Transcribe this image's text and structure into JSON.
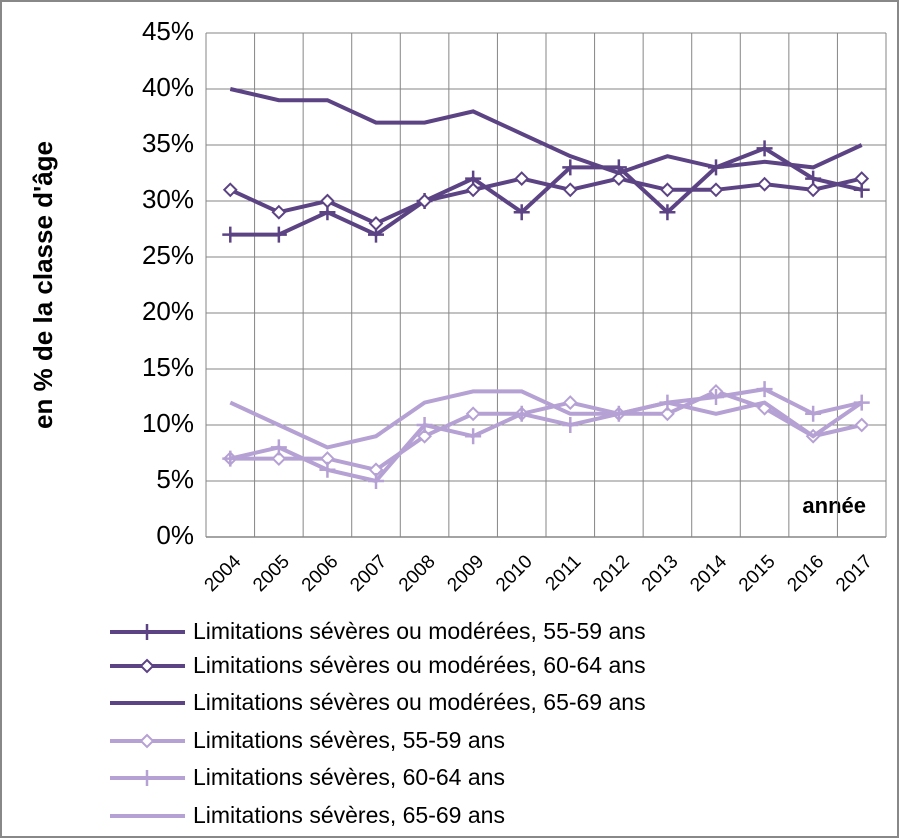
{
  "chart_data": {
    "type": "line",
    "y_label": "en % de la classe d'âge",
    "x_label": "année",
    "categories": [
      "2004",
      "2005",
      "2006",
      "2007",
      "2008",
      "2009",
      "2010",
      "2011",
      "2012",
      "2013",
      "2014",
      "2015",
      "2016",
      "2017"
    ],
    "ylim": [
      0,
      45
    ],
    "yticks": [
      {
        "value": 0,
        "label": "0%"
      },
      {
        "value": 5,
        "label": "5%"
      },
      {
        "value": 10,
        "label": "10%"
      },
      {
        "value": 15,
        "label": "15%"
      },
      {
        "value": 20,
        "label": "20%"
      },
      {
        "value": 25,
        "label": "25%"
      },
      {
        "value": 30,
        "label": "30%"
      },
      {
        "value": 35,
        "label": "35%"
      },
      {
        "value": 40,
        "label": "40%"
      },
      {
        "value": 45,
        "label": "45%"
      }
    ],
    "grid": true,
    "series": [
      {
        "name": "Limitations sévères ou modérées, 55-59 ans",
        "color": "#5c4384",
        "marker": "cross",
        "values": [
          27,
          27,
          29,
          27,
          30,
          32,
          29,
          33,
          33,
          29,
          33,
          34.7,
          32,
          31
        ]
      },
      {
        "name": "Limitations sévères ou modérées, 60-64 ans",
        "color": "#5c4384",
        "marker": "diamond",
        "values": [
          31,
          29,
          30,
          28,
          30,
          31,
          32,
          31,
          32,
          31,
          31,
          31.5,
          31,
          32
        ]
      },
      {
        "name": "Limitations sévères ou modérées, 65-69 ans",
        "color": "#5c4384",
        "marker": "none",
        "values": [
          40,
          39,
          39,
          37,
          37,
          38,
          36,
          34,
          32.5,
          34,
          33,
          33.5,
          33,
          35
        ]
      },
      {
        "name": "Limitations sévères, 55-59 ans",
        "color": "#b5a1d3",
        "marker": "diamond",
        "values": [
          7,
          7,
          7,
          6,
          9,
          11,
          11,
          12,
          11,
          11,
          13,
          11.5,
          9,
          10
        ]
      },
      {
        "name": "Limitations sévères, 60-64 ans",
        "color": "#b5a1d3",
        "marker": "cross",
        "values": [
          7,
          8,
          6,
          5,
          10,
          9,
          11,
          10,
          11,
          12,
          12.5,
          13.2,
          11,
          12
        ]
      },
      {
        "name": "Limitations sévères, 65-69 ans",
        "color": "#b5a1d3",
        "marker": "none",
        "values": [
          12,
          10,
          8,
          9,
          12,
          13,
          13,
          11,
          11,
          12,
          11,
          12,
          9,
          12
        ]
      }
    ]
  }
}
